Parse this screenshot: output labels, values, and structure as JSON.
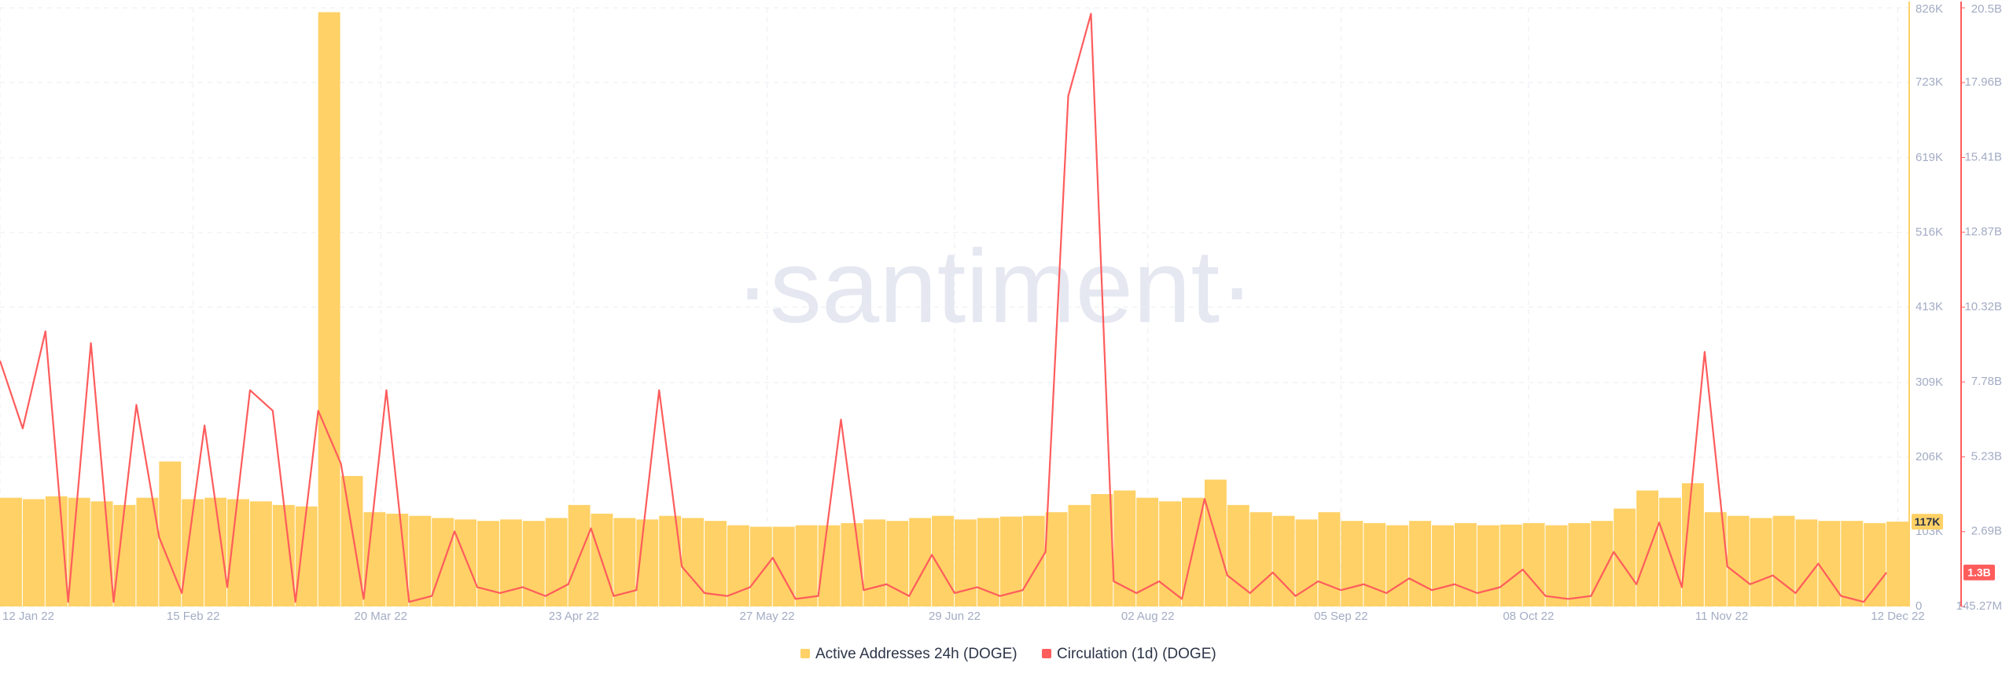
{
  "chart_data": {
    "type": "combo",
    "watermark": "·santiment·",
    "grid": true,
    "legend": "bottom",
    "x": [
      "2022-01-12",
      "2022-01-16",
      "2022-01-20",
      "2022-01-24",
      "2022-01-28",
      "2022-02-01",
      "2022-02-05",
      "2022-02-09",
      "2022-02-13",
      "2022-02-17",
      "2022-02-21",
      "2022-02-25",
      "2022-03-01",
      "2022-03-05",
      "2022-03-09",
      "2022-03-13",
      "2022-03-17",
      "2022-03-21",
      "2022-03-25",
      "2022-03-29",
      "2022-04-02",
      "2022-04-06",
      "2022-04-10",
      "2022-04-14",
      "2022-04-18",
      "2022-04-22",
      "2022-04-26",
      "2022-04-30",
      "2022-05-04",
      "2022-05-08",
      "2022-05-12",
      "2022-05-16",
      "2022-05-20",
      "2022-05-24",
      "2022-05-28",
      "2022-06-01",
      "2022-06-05",
      "2022-06-09",
      "2022-06-13",
      "2022-06-17",
      "2022-06-21",
      "2022-06-25",
      "2022-06-29",
      "2022-07-03",
      "2022-07-07",
      "2022-07-11",
      "2022-07-15",
      "2022-07-19",
      "2022-07-23",
      "2022-07-27",
      "2022-07-31",
      "2022-08-04",
      "2022-08-08",
      "2022-08-12",
      "2022-08-16",
      "2022-08-20",
      "2022-08-24",
      "2022-08-28",
      "2022-09-01",
      "2022-09-05",
      "2022-09-09",
      "2022-09-13",
      "2022-09-17",
      "2022-09-21",
      "2022-09-25",
      "2022-09-29",
      "2022-10-03",
      "2022-10-07",
      "2022-10-11",
      "2022-10-15",
      "2022-10-19",
      "2022-10-23",
      "2022-10-27",
      "2022-10-31",
      "2022-11-04",
      "2022-11-08",
      "2022-11-12",
      "2022-11-16",
      "2022-11-20",
      "2022-11-24",
      "2022-11-28",
      "2022-12-02",
      "2022-12-06",
      "2022-12-10"
    ],
    "xlim": [
      "2022-01-12",
      "2022-12-14"
    ],
    "xticks": [
      {
        "value": "2022-01-12",
        "label": "12 Jan 22"
      },
      {
        "value": "2022-02-15",
        "label": "15 Feb 22"
      },
      {
        "value": "2022-03-20",
        "label": "20 Mar 22"
      },
      {
        "value": "2022-04-23",
        "label": "23 Apr 22"
      },
      {
        "value": "2022-05-27",
        "label": "27 May 22"
      },
      {
        "value": "2022-06-29",
        "label": "29 Jun 22"
      },
      {
        "value": "2022-08-02",
        "label": "02 Aug 22"
      },
      {
        "value": "2022-09-05",
        "label": "05 Sep 22"
      },
      {
        "value": "2022-10-08",
        "label": "08 Oct 22"
      },
      {
        "value": "2022-11-11",
        "label": "11 Nov 22"
      },
      {
        "value": "2022-12-12",
        "label": "12 Dec 22"
      }
    ],
    "ylim": [
      0,
      826000
    ],
    "yticks": [
      0,
      {
        "value": 103000,
        "label": "103K"
      },
      {
        "value": 206000,
        "label": "206K"
      },
      {
        "value": 309000,
        "label": "309K"
      },
      {
        "value": 413000,
        "label": "413K"
      },
      {
        "value": 516000,
        "label": "516K"
      },
      {
        "value": 619000,
        "label": "619K"
      },
      {
        "value": 723000,
        "label": "723K"
      },
      {
        "value": 826000,
        "label": "826K"
      }
    ],
    "y2lim": [
      145270000,
      20500000000
    ],
    "y2ticks": [
      {
        "value": 145270000,
        "label": "145.27M"
      },
      {
        "value": 2690000000,
        "label": "2.69B"
      },
      {
        "value": 5230000000,
        "label": "5.23B"
      },
      {
        "value": 7780000000,
        "label": "7.78B"
      },
      {
        "value": 10320000000,
        "label": "10.32B"
      },
      {
        "value": 12870000000,
        "label": "12.87B"
      },
      {
        "value": 15410000000,
        "label": "15.41B"
      },
      {
        "value": 17960000000,
        "label": "17.96B"
      },
      {
        "value": 20500000000,
        "label": "20.5B"
      }
    ],
    "series": [
      {
        "name": "Active Addresses 24h (DOGE)",
        "type": "bar",
        "color": "#ffd166",
        "last_value_label": "117K",
        "values": [
          150000,
          148000,
          152000,
          150000,
          145000,
          140000,
          150000,
          200000,
          148000,
          150000,
          148000,
          145000,
          140000,
          138000,
          820000,
          180000,
          130000,
          128000,
          125000,
          122000,
          120000,
          118000,
          120000,
          118000,
          122000,
          140000,
          128000,
          122000,
          120000,
          125000,
          122000,
          118000,
          112000,
          110000,
          110000,
          112000,
          112000,
          115000,
          120000,
          118000,
          122000,
          125000,
          120000,
          122000,
          124000,
          125000,
          130000,
          140000,
          155000,
          160000,
          150000,
          145000,
          150000,
          175000,
          140000,
          130000,
          125000,
          120000,
          130000,
          118000,
          115000,
          112000,
          118000,
          112000,
          115000,
          112000,
          113000,
          115000,
          112000,
          115000,
          118000,
          135000,
          160000,
          150000,
          170000,
          130000,
          125000,
          122000,
          125000,
          120000,
          118000,
          118000,
          115000,
          117000
        ]
      },
      {
        "name": "Circulation (1d) (DOGE)",
        "type": "line",
        "axis": "y2",
        "color": "#ff5c5c",
        "last_value_label": "1.3B",
        "values": [
          8500000000,
          6200000000,
          9500000000,
          300000000,
          9100000000,
          300000000,
          7000000000,
          2500000000,
          600000000,
          6300000000,
          800000000,
          7500000000,
          6800000000,
          300000000,
          6800000000,
          5000000000,
          400000000,
          7500000000,
          300000000,
          500000000,
          2700000000,
          800000000,
          600000000,
          800000000,
          500000000,
          900000000,
          2800000000,
          500000000,
          700000000,
          7500000000,
          1500000000,
          600000000,
          500000000,
          800000000,
          1800000000,
          400000000,
          500000000,
          6500000000,
          700000000,
          900000000,
          500000000,
          1900000000,
          600000000,
          800000000,
          500000000,
          700000000,
          2000000000,
          17500000000,
          20300000000,
          1000000000,
          600000000,
          1000000000,
          400000000,
          3800000000,
          1200000000,
          600000000,
          1300000000,
          500000000,
          1000000000,
          700000000,
          900000000,
          600000000,
          1100000000,
          700000000,
          900000000,
          600000000,
          800000000,
          1400000000,
          500000000,
          400000000,
          500000000,
          2000000000,
          900000000,
          3000000000,
          800000000,
          8800000000,
          1500000000,
          900000000,
          1200000000,
          600000000,
          1600000000,
          500000000,
          300000000,
          1300000000
        ]
      }
    ]
  }
}
